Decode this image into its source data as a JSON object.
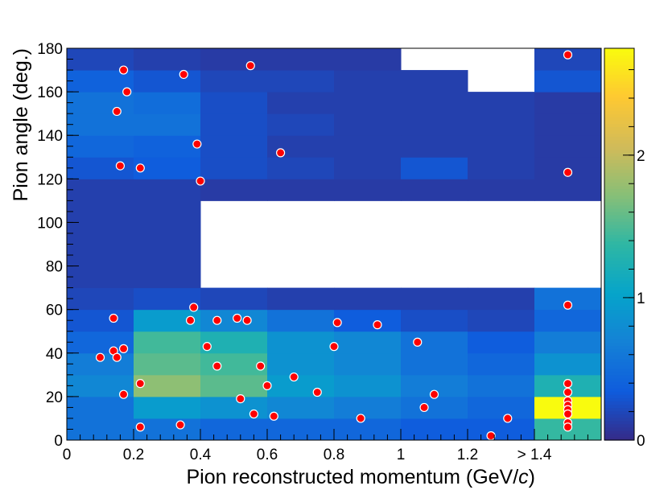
{
  "chart_data": {
    "type": "heatmap",
    "title": "",
    "xlabel": "Pion reconstructed momentum (GeV/",
    "xlabel_italic": "c",
    "xlabel_close": ")",
    "ylabel": "Pion angle (deg.)",
    "x_bin_edges": [
      0,
      0.2,
      0.4,
      0.6,
      0.8,
      1.0,
      1.2,
      1.4,
      1.6
    ],
    "y_bin_edges": [
      0,
      10,
      20,
      30,
      40,
      50,
      60,
      70,
      110,
      120,
      130,
      140,
      150,
      160,
      170,
      180
    ],
    "xlim": [
      0,
      1.6
    ],
    "ylim": [
      0,
      180
    ],
    "x_ticks": [
      {
        "value": 0,
        "label": "0"
      },
      {
        "value": 0.2,
        "label": "0.2"
      },
      {
        "value": 0.4,
        "label": "0.4"
      },
      {
        "value": 0.6,
        "label": "0.6"
      },
      {
        "value": 0.8,
        "label": "0.8"
      },
      {
        "value": 1.0,
        "label": "1"
      },
      {
        "value": 1.2,
        "label": "1.2"
      },
      {
        "value": 1.4,
        "label": "> 1.4"
      }
    ],
    "y_ticks": [
      {
        "value": 0,
        "label": "0"
      },
      {
        "value": 20,
        "label": "20"
      },
      {
        "value": 40,
        "label": "40"
      },
      {
        "value": 60,
        "label": "60"
      },
      {
        "value": 80,
        "label": "80"
      },
      {
        "value": 100,
        "label": "100"
      },
      {
        "value": 120,
        "label": "120"
      },
      {
        "value": 140,
        "label": "140"
      },
      {
        "value": 160,
        "label": "160"
      },
      {
        "value": 180,
        "label": "180"
      }
    ],
    "z_range": [
      0,
      2.75
    ],
    "z_ticks": [
      {
        "value": 0,
        "label": "0"
      },
      {
        "value": 1,
        "label": "1"
      },
      {
        "value": 2,
        "label": "2"
      }
    ],
    "z_grid_rows_bottom_to_top": [
      [
        0.55,
        0.55,
        0.45,
        0.45,
        0.45,
        0.35,
        0.35,
        1.4
      ],
      [
        0.55,
        0.95,
        0.85,
        0.75,
        0.65,
        0.55,
        0.45,
        2.75
      ],
      [
        0.75,
        1.75,
        1.55,
        0.95,
        0.85,
        0.65,
        0.55,
        1.25
      ],
      [
        0.65,
        1.55,
        1.45,
        0.85,
        0.75,
        0.55,
        0.45,
        0.85
      ],
      [
        0.45,
        1.45,
        1.25,
        0.85,
        0.75,
        0.55,
        0.35,
        0.65
      ],
      [
        0.3,
        0.95,
        0.75,
        0.55,
        0.35,
        0.25,
        0.2,
        0.45
      ],
      [
        0.2,
        0.25,
        0.2,
        0.15,
        0.15,
        0.15,
        0.15,
        0.55
      ],
      [
        0.15,
        0.15,
        null,
        null,
        null,
        null,
        null,
        null
      ],
      [
        0.15,
        0.15,
        0.12,
        0.12,
        0.12,
        0.12,
        0.12,
        0.12
      ],
      [
        0.3,
        0.35,
        0.25,
        0.2,
        0.15,
        0.3,
        0.15,
        0.12
      ],
      [
        0.45,
        0.4,
        0.25,
        0.15,
        0.15,
        0.15,
        0.15,
        0.12
      ],
      [
        0.55,
        0.55,
        0.25,
        0.2,
        0.15,
        0.15,
        0.15,
        0.12
      ],
      [
        0.55,
        0.5,
        0.25,
        0.15,
        0.15,
        0.15,
        0.15,
        0.12
      ],
      [
        0.4,
        0.3,
        0.2,
        0.2,
        0.15,
        0.15,
        null,
        0.3
      ],
      [
        0.2,
        0.15,
        0.12,
        0.12,
        0.12,
        null,
        null,
        0.2
      ]
    ],
    "series": [
      {
        "marker": "red-dot",
        "points": [
          [
            0.17,
            170
          ],
          [
            0.35,
            168
          ],
          [
            0.55,
            172
          ],
          [
            1.5,
            177
          ],
          [
            0.18,
            160
          ],
          [
            0.15,
            151
          ],
          [
            0.39,
            136
          ],
          [
            0.64,
            132
          ],
          [
            0.16,
            126
          ],
          [
            0.22,
            125
          ],
          [
            0.4,
            119
          ],
          [
            1.5,
            123
          ],
          [
            1.5,
            62
          ],
          [
            0.38,
            61
          ],
          [
            0.14,
            56
          ],
          [
            0.37,
            55
          ],
          [
            0.45,
            55
          ],
          [
            0.51,
            56
          ],
          [
            0.54,
            55
          ],
          [
            0.81,
            54
          ],
          [
            0.93,
            53
          ],
          [
            1.05,
            45
          ],
          [
            0.1,
            38
          ],
          [
            0.14,
            41
          ],
          [
            0.15,
            38
          ],
          [
            0.17,
            42
          ],
          [
            0.42,
            43
          ],
          [
            0.8,
            43
          ],
          [
            0.45,
            34
          ],
          [
            0.58,
            34
          ],
          [
            0.68,
            29
          ],
          [
            0.22,
            26
          ],
          [
            0.6,
            25
          ],
          [
            0.17,
            21
          ],
          [
            0.52,
            19
          ],
          [
            0.75,
            22
          ],
          [
            1.1,
            21
          ],
          [
            1.07,
            15
          ],
          [
            0.56,
            12
          ],
          [
            0.62,
            11
          ],
          [
            0.88,
            10
          ],
          [
            1.32,
            10
          ],
          [
            0.22,
            6
          ],
          [
            0.34,
            7
          ],
          [
            1.27,
            2
          ],
          [
            1.5,
            26
          ],
          [
            1.5,
            22
          ],
          [
            1.5,
            18
          ],
          [
            1.5,
            16
          ],
          [
            1.5,
            14
          ],
          [
            1.5,
            12
          ],
          [
            1.5,
            8
          ],
          [
            1.5,
            6
          ]
        ]
      }
    ],
    "colors": {
      "palette": [
        "#352a87",
        "#0f5cdd",
        "#1481d6",
        "#06a4ca",
        "#2eb7a4",
        "#87bf77",
        "#d1bb59",
        "#fec832",
        "#f9fb0e"
      ],
      "marker_fill": "#ff0000",
      "marker_stroke": "#ffffff",
      "frame": "#000000"
    }
  }
}
